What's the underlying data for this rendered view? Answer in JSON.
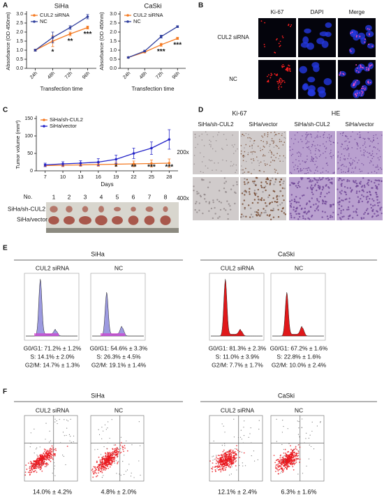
{
  "panel_labels": [
    "A",
    "B",
    "C",
    "D",
    "E",
    "F"
  ],
  "chart_data": [
    {
      "type": "line",
      "title": "SiHa",
      "x_label": "Transfection time",
      "y_label": "Absorbance (OD 450nm)",
      "categories": [
        "24h",
        "48h",
        "72h",
        "96h"
      ],
      "series": [
        {
          "name": "CUL2 siRNA",
          "color": "#f47920",
          "values": [
            1.0,
            1.5,
            1.9,
            2.25
          ],
          "errors": [
            0.05,
            0.3,
            0.1,
            0.08
          ]
        },
        {
          "name": "NC",
          "color": "#2e3d9c",
          "values": [
            1.0,
            1.7,
            2.25,
            2.85
          ],
          "errors": [
            0.05,
            0.3,
            0.1,
            0.12
          ]
        }
      ],
      "ylim": [
        0,
        3
      ],
      "yticks": [
        {
          "value": 0,
          "label": "0.0"
        },
        0.5,
        {
          "value": 1,
          "label": "1.0"
        },
        1.5,
        {
          "value": 2,
          "label": "2.0"
        },
        2.5,
        {
          "value": 3,
          "label": "3.0"
        }
      ],
      "annotations": [
        {
          "x": "48h",
          "text": "*"
        },
        {
          "x": "72h",
          "text": "**"
        },
        {
          "x": "96h",
          "text": "***"
        }
      ],
      "legend": "upper left"
    },
    {
      "type": "line",
      "title": "CaSki",
      "x_label": "Transfection time",
      "y_label": "Absorbance (OD 450nm)",
      "categories": [
        "24h",
        "48h",
        "72h",
        "96h"
      ],
      "series": [
        {
          "name": "CUL2 siRNA",
          "color": "#f47920",
          "values": [
            0.6,
            0.9,
            1.3,
            1.65
          ],
          "errors": [
            0.03,
            0.05,
            0.08,
            0.06
          ]
        },
        {
          "name": "NC",
          "color": "#2e3d9c",
          "values": [
            0.6,
            0.95,
            1.75,
            2.3
          ],
          "errors": [
            0.03,
            0.05,
            0.08,
            0.05
          ]
        }
      ],
      "ylim": [
        0,
        3
      ],
      "yticks": [
        {
          "value": 0,
          "label": "0.0"
        },
        0.5,
        {
          "value": 1,
          "label": "1.0"
        },
        1.5,
        {
          "value": 2,
          "label": "2.0"
        },
        2.5,
        {
          "value": 3,
          "label": "3.0"
        }
      ],
      "annotations": [
        {
          "x": "72h",
          "text": "***"
        },
        {
          "x": "96h",
          "text": "***"
        }
      ],
      "legend": "upper left"
    },
    {
      "type": "line",
      "x_label": "Days",
      "y_label": "Tumor volume (mm³)",
      "x": [
        7,
        10,
        13,
        16,
        19,
        22,
        25,
        28
      ],
      "xlim": [
        5.5,
        29.5
      ],
      "xticks": [
        7,
        10,
        13,
        16,
        19,
        22,
        25,
        28
      ],
      "series": [
        {
          "name": "SiHa/sh-CUL2",
          "color": "#f47920",
          "values": [
            15,
            16,
            17,
            18,
            19,
            20,
            21,
            22
          ],
          "errors": [
            3,
            4,
            4,
            5,
            6,
            8,
            10,
            12
          ]
        },
        {
          "name": "SiHa/vector",
          "color": "#2424c8",
          "values": [
            17,
            20,
            22,
            25,
            33,
            50,
            65,
            90
          ],
          "errors": [
            5,
            6,
            7,
            10,
            12,
            15,
            18,
            28
          ]
        }
      ],
      "ylim": [
        0,
        150
      ],
      "yticks": [
        0,
        50,
        100,
        150
      ],
      "annotations": [
        {
          "x": 19,
          "text": "*"
        },
        {
          "x": 22,
          "text": "**"
        },
        {
          "x": 25,
          "text": "***"
        },
        {
          "x": 28,
          "text": "***"
        }
      ],
      "legend": "upper left"
    }
  ],
  "panel_b": {
    "columns": [
      "Ki-67",
      "DAPI",
      "Merge"
    ],
    "rows": [
      "CUL2 siRNA",
      "NC"
    ]
  },
  "panel_c_photo": {
    "number_label": "No.",
    "numbers": [
      1,
      2,
      3,
      4,
      5,
      6,
      7,
      8
    ],
    "rows": [
      "SiHa/sh-CUL2",
      "SiHa/vector"
    ]
  },
  "panel_d": {
    "groups": [
      "Ki-67",
      "HE"
    ],
    "columns": [
      "SiHa/sh-CUL2",
      "SiHa/vector",
      "SiHa/sh-CUL2",
      "SiHa/vector"
    ],
    "rows": [
      "200x",
      "400x"
    ]
  },
  "panel_e": {
    "groups": [
      {
        "title": "SiHa",
        "samples": [
          {
            "name": "CUL2 siRNA",
            "stats": [
              "G0/G1: 71.2% ± 1.2%",
              "S: 14.1% ± 2.0%",
              "G2/M: 14.7% ± 1.3%"
            ]
          },
          {
            "name": "NC",
            "stats": [
              "G0/G1: 54.6% ± 3.3%",
              "S: 26.3% ± 4.5%",
              "G2/M: 19.1% ± 1.4%"
            ]
          }
        ]
      },
      {
        "title": "CaSki",
        "samples": [
          {
            "name": "CUL2 siRNA",
            "stats": [
              "G0/G1: 81.3% ± 2.3%",
              "S: 11.0% ± 3.9%",
              "G2/M: 7.7% ± 1.7%"
            ]
          },
          {
            "name": "NC",
            "stats": [
              "G0/G1: 67.2% ± 1.6%",
              "S: 22.8% ± 1.6%",
              "G2/M: 10.0% ± 2.4%"
            ]
          }
        ]
      }
    ]
  },
  "panel_f": {
    "groups": [
      {
        "title": "SiHa",
        "samples": [
          {
            "name": "CUL2 siRNA",
            "value": "14.0% ± 4.2%"
          },
          {
            "name": "NC",
            "value": "4.8% ± 2.0%"
          }
        ]
      },
      {
        "title": "CaSki",
        "samples": [
          {
            "name": "CUL2 siRNA",
            "value": "12.1% ± 2.4%"
          },
          {
            "name": "NC",
            "value": "6.3% ± 1.6%"
          }
        ]
      }
    ]
  }
}
